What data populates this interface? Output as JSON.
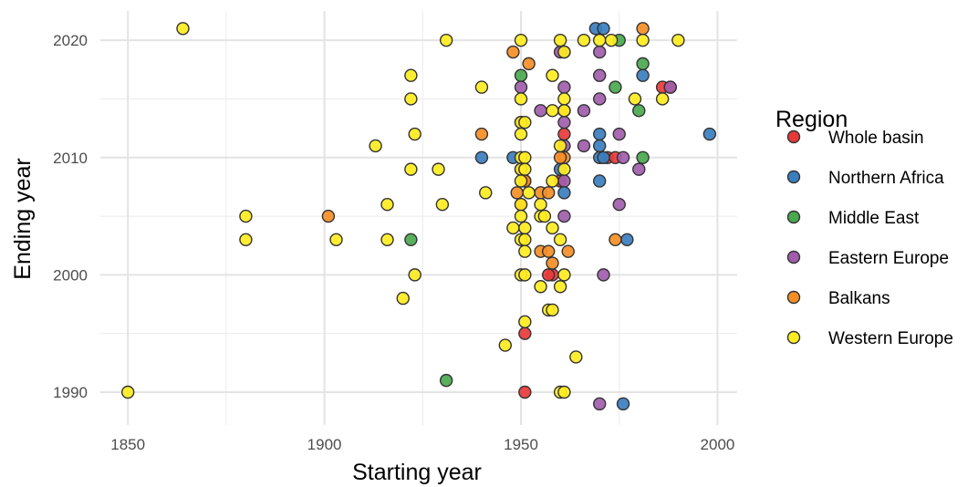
{
  "chart_data": {
    "type": "scatter",
    "xlabel": "Starting year",
    "ylabel": "Ending year",
    "xlim": [
      1843,
      2005
    ],
    "ylim": [
      1987.2,
      2022.5
    ],
    "x_ticks": [
      1850,
      1900,
      1950,
      2000
    ],
    "y_ticks": [
      1990,
      2000,
      2010,
      2020
    ],
    "grid": true,
    "legend": {
      "title": "Region",
      "position": "right",
      "entries": [
        {
          "name": "Whole basin",
          "color": "#e8393a"
        },
        {
          "name": "Northern Africa",
          "color": "#3a7ebf"
        },
        {
          "name": "Middle East",
          "color": "#4aa84e"
        },
        {
          "name": "Eastern Europe",
          "color": "#a15dad"
        },
        {
          "name": "Balkans",
          "color": "#f58e25"
        },
        {
          "name": "Western Europe",
          "color": "#ffec21"
        }
      ]
    },
    "series": [
      {
        "name": "Whole basin",
        "color": "#e8393a",
        "points": [
          [
            1950,
            2009
          ],
          [
            1950,
            2006
          ],
          [
            1951,
            2008
          ],
          [
            1958,
            2000
          ],
          [
            1951,
            1995
          ],
          [
            1951,
            1990
          ],
          [
            1961,
            2012
          ],
          [
            1972,
            2010
          ],
          [
            1974,
            2010
          ],
          [
            1986,
            2016
          ],
          [
            1988,
            2016
          ],
          [
            1960,
            2008
          ],
          [
            1957,
            2000
          ]
        ]
      },
      {
        "name": "Northern Africa",
        "color": "#3a7ebf",
        "points": [
          [
            1969,
            2021
          ],
          [
            1971,
            2021
          ],
          [
            1970,
            2012
          ],
          [
            1970,
            2011
          ],
          [
            1970,
            2010
          ],
          [
            1971,
            2010
          ],
          [
            1970,
            2008
          ],
          [
            1960,
            2009
          ],
          [
            1961,
            2007
          ],
          [
            1940,
            2010
          ],
          [
            1948,
            2010
          ],
          [
            1976,
            1989
          ],
          [
            1977,
            2003
          ],
          [
            1981,
            2017
          ],
          [
            1998,
            2012
          ]
        ]
      },
      {
        "name": "Middle East",
        "color": "#4aa84e",
        "points": [
          [
            1975,
            2020
          ],
          [
            1974,
            2016
          ],
          [
            1981,
            2018
          ],
          [
            1980,
            2014
          ],
          [
            1981,
            2010
          ],
          [
            1922,
            2003
          ],
          [
            1931,
            1991
          ],
          [
            1950,
            2017
          ]
        ]
      },
      {
        "name": "Eastern Europe",
        "color": "#a15dad",
        "points": [
          [
            1961,
            2019
          ],
          [
            1960,
            2019
          ],
          [
            1961,
            2016
          ],
          [
            1961,
            2014
          ],
          [
            1961,
            2013
          ],
          [
            1966,
            2014
          ],
          [
            1966,
            2011
          ],
          [
            1970,
            2019
          ],
          [
            1970,
            2017
          ],
          [
            1970,
            2015
          ],
          [
            1961,
            2011
          ],
          [
            1961,
            2008
          ],
          [
            1961,
            2005
          ],
          [
            1955,
            2014
          ],
          [
            1950,
            2016
          ],
          [
            1950,
            2013
          ],
          [
            1975,
            2012
          ],
          [
            1976,
            2010
          ],
          [
            1980,
            2009
          ],
          [
            1975,
            2006
          ],
          [
            1971,
            2000
          ],
          [
            1970,
            1989
          ],
          [
            1988,
            2016
          ]
        ]
      },
      {
        "name": "Balkans",
        "color": "#f58e25",
        "points": [
          [
            1948,
            2019
          ],
          [
            1952,
            2018
          ],
          [
            1981,
            2021
          ],
          [
            1940,
            2012
          ],
          [
            1961,
            2014
          ],
          [
            1961,
            2010
          ],
          [
            1960,
            2010
          ],
          [
            1949,
            2007
          ],
          [
            1955,
            2007
          ],
          [
            1957,
            2007
          ],
          [
            1958,
            2001
          ],
          [
            1955,
            2002
          ],
          [
            1957,
            2002
          ],
          [
            1962,
            2002
          ],
          [
            1974,
            2003
          ],
          [
            1901,
            2005
          ],
          [
            1951,
            2008
          ]
        ]
      },
      {
        "name": "Western Europe",
        "color": "#ffec21",
        "points": [
          [
            1864,
            2021
          ],
          [
            1850,
            1990
          ],
          [
            1880,
            2005
          ],
          [
            1880,
            2003
          ],
          [
            1903,
            2003
          ],
          [
            1916,
            2006
          ],
          [
            1916,
            2003
          ],
          [
            1913,
            2011
          ],
          [
            1920,
            1998
          ],
          [
            1922,
            2017
          ],
          [
            1922,
            2015
          ],
          [
            1923,
            2012
          ],
          [
            1922,
            2009
          ],
          [
            1923,
            2000
          ],
          [
            1929,
            2009
          ],
          [
            1930,
            2006
          ],
          [
            1931,
            2020
          ],
          [
            1940,
            2016
          ],
          [
            1941,
            2007
          ],
          [
            1946,
            1994
          ],
          [
            1948,
            2004
          ],
          [
            1950,
            2020
          ],
          [
            1950,
            2015
          ],
          [
            1950,
            2013
          ],
          [
            1951,
            2013
          ],
          [
            1950,
            2012
          ],
          [
            1950,
            2010
          ],
          [
            1951,
            2010
          ],
          [
            1950,
            2009
          ],
          [
            1951,
            2009
          ],
          [
            1950,
            2008
          ],
          [
            1952,
            2007
          ],
          [
            1950,
            2006
          ],
          [
            1950,
            2005
          ],
          [
            1951,
            2004
          ],
          [
            1950,
            2003
          ],
          [
            1951,
            2003
          ],
          [
            1951,
            2002
          ],
          [
            1950,
            2000
          ],
          [
            1951,
            2000
          ],
          [
            1951,
            1996
          ],
          [
            1955,
            2006
          ],
          [
            1955,
            2005
          ],
          [
            1956,
            2005
          ],
          [
            1955,
            1999
          ],
          [
            1957,
            1997
          ],
          [
            1958,
            1997
          ],
          [
            1958,
            2017
          ],
          [
            1960,
            2020
          ],
          [
            1961,
            2019
          ],
          [
            1958,
            2014
          ],
          [
            1961,
            2015
          ],
          [
            1961,
            2014
          ],
          [
            1960,
            2011
          ],
          [
            1961,
            2009
          ],
          [
            1958,
            2008
          ],
          [
            1958,
            2004
          ],
          [
            1960,
            2003
          ],
          [
            1960,
            1999
          ],
          [
            1961,
            2000
          ],
          [
            1960,
            1990
          ],
          [
            1961,
            1990
          ],
          [
            1964,
            1993
          ],
          [
            1966,
            2020
          ],
          [
            1970,
            2020
          ],
          [
            1973,
            2020
          ],
          [
            1981,
            2020
          ],
          [
            1990,
            2020
          ],
          [
            1979,
            2015
          ],
          [
            1986,
            2015
          ]
        ]
      }
    ]
  }
}
